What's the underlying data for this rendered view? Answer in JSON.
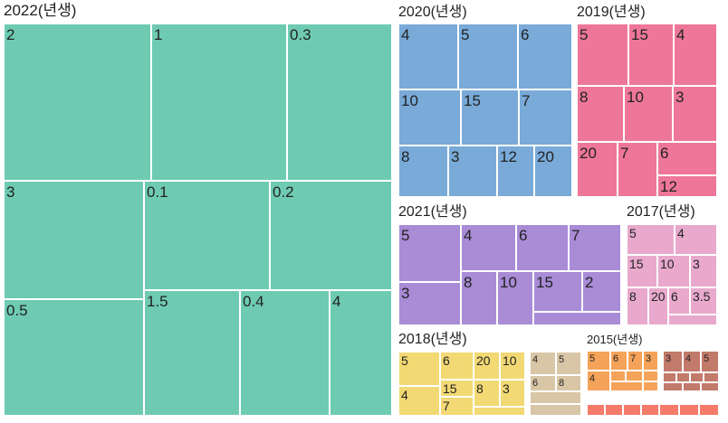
{
  "chart_data": {
    "type": "treemap",
    "groups": [
      {
        "name": "2022(년생)",
        "color": "#6ecbb2",
        "tiles": [
          "2",
          "1",
          "0.3",
          "3",
          "0.1",
          "0.2",
          "0.5",
          "1.5",
          "0.4",
          "4"
        ]
      },
      {
        "name": "2020(년생)",
        "color": "#79aad8",
        "tiles": [
          "4",
          "5",
          "6",
          "10",
          "15",
          "7",
          "8",
          "3",
          "12",
          "20"
        ]
      },
      {
        "name": "2019(년생)",
        "color": "#ee7799",
        "tiles": [
          "5",
          "15",
          "4",
          "8",
          "10",
          "3",
          "20",
          "7",
          "6",
          "12"
        ]
      },
      {
        "name": "2021(년생)",
        "color": "#a98bd6",
        "tiles": [
          "5",
          "4",
          "6",
          "7",
          "3",
          "8",
          "10",
          "15",
          "2"
        ]
      },
      {
        "name": "2017(년생)",
        "color": "#e8a9cd",
        "tiles": [
          "5",
          "4",
          "15",
          "10",
          "3",
          "8",
          "20",
          "6",
          "3.5"
        ]
      },
      {
        "name": "2018(년생)",
        "color": "#f2d974",
        "tiles": [
          "5",
          "6",
          "20",
          "10",
          "4",
          "15",
          "8",
          "3",
          "7"
        ]
      },
      {
        "name": "",
        "color": "#d8c6a6",
        "tiles": [
          "4",
          "5",
          "6",
          "8"
        ]
      },
      {
        "name": "2015(년생)",
        "color": "#f5a35a",
        "tiles": [
          "5",
          "6",
          "7",
          "3",
          "4"
        ]
      },
      {
        "name": "",
        "color": "#c27a6a",
        "tiles": [
          "3",
          "4",
          "5"
        ]
      },
      {
        "name": "",
        "color": "#f47b6a",
        "tiles": []
      }
    ]
  }
}
